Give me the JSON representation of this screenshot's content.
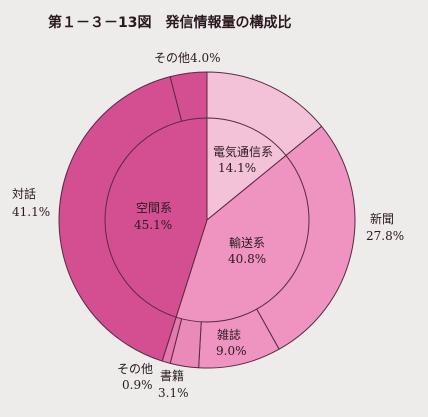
{
  "chart_data": {
    "type": "pie",
    "title": "第１－３－13図　発信情報量の構成比",
    "rings": [
      {
        "ring": "outer",
        "slices": [
          {
            "label": "電気通信系",
            "value": 14.1,
            "color": "#f4c2d8"
          },
          {
            "label": "新聞",
            "value": 27.8,
            "color": "#ef94c0"
          },
          {
            "label": "雑誌",
            "value": 9.0,
            "color": "#ef94c0"
          },
          {
            "label": "書籍",
            "value": 3.1,
            "color": "#ea8ab8"
          },
          {
            "label": "その他",
            "value": 0.9,
            "color": "#e578ae"
          },
          {
            "label": "対話",
            "value": 41.1,
            "color": "#d44f92"
          },
          {
            "label": "その他",
            "value": 4.0,
            "color": "#d44f92"
          }
        ]
      },
      {
        "ring": "inner",
        "slices": [
          {
            "label": "電気通信系",
            "value": 14.1,
            "color": "#f4c2d8"
          },
          {
            "label": "輸送系",
            "value": 40.8,
            "color": "#ef94c0"
          },
          {
            "label": "空間系",
            "value": 45.1,
            "color": "#d44f92"
          }
        ]
      }
    ],
    "labels": {
      "denki": {
        "name": "電気通信系",
        "value": "14.1%"
      },
      "shinbun": {
        "name": "新聞",
        "value": "27.8%"
      },
      "yuso": {
        "name": "輸送系",
        "value": "40.8%"
      },
      "zasshi": {
        "name": "雑誌",
        "value": "9.0%"
      },
      "shoseki": {
        "name": "書籍",
        "value": "3.1%"
      },
      "sonota_small": {
        "name": "その他",
        "value": "0.9%"
      },
      "taiwa": {
        "name": "対話",
        "value": "41.1%"
      },
      "kukan": {
        "name": "空間系",
        "value": "45.1%"
      },
      "sonota_top": "その他4.0%"
    }
  }
}
